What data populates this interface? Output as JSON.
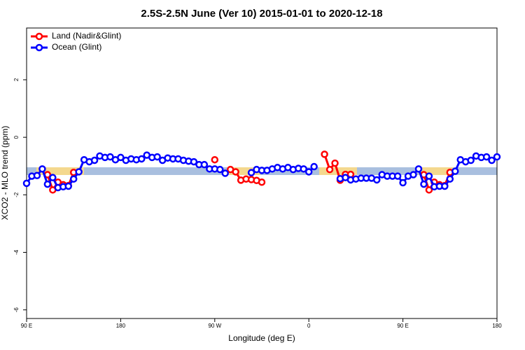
{
  "chart_data": {
    "type": "line",
    "title": "2.5S-2.5N June (Ver 10)   2015-01-01 to 2020-12-18",
    "xlabel": "Longitude (deg E)",
    "ylabel": "XCO2 - MLO trend (ppm)",
    "xlim": [
      90,
      540
    ],
    "ylim": [
      -6.3,
      3.8
    ],
    "xticks": [
      {
        "value": 90,
        "label": "90 E"
      },
      {
        "value": 180,
        "label": "180"
      },
      {
        "value": 270,
        "label": "90 W"
      },
      {
        "value": 360,
        "label": "0"
      },
      {
        "value": 450,
        "label": "90 E"
      },
      {
        "value": 540,
        "label": "180"
      }
    ],
    "yticks": [
      -6,
      -4,
      -2,
      0,
      2
    ],
    "legend": "top-left",
    "series": [
      {
        "name": "Land (Nadir&Glint)",
        "color": "#ff0000",
        "x": [
          110,
          115,
          120,
          125,
          130,
          135,
          null,
          270,
          null,
          285,
          290,
          295,
          300,
          305,
          310,
          315,
          null,
          375,
          380,
          385,
          390,
          395,
          400,
          null,
          470,
          475,
          480,
          485,
          490,
          495
        ],
        "values": [
          -1.3,
          -1.83,
          -1.56,
          -1.65,
          -1.68,
          -1.22,
          null,
          -0.78,
          null,
          -1.12,
          -1.2,
          -1.49,
          -1.45,
          -1.47,
          -1.5,
          -1.56,
          null,
          -0.59,
          -1.12,
          -0.9,
          -1.49,
          -1.29,
          -1.29,
          null,
          -1.3,
          -1.83,
          -1.56,
          -1.65,
          -1.68,
          -1.22
        ]
      },
      {
        "name": "Ocean (Glint)",
        "color": "#0000ff",
        "x": [
          90,
          95,
          100,
          105,
          110,
          115,
          120,
          125,
          130,
          135,
          140,
          145,
          150,
          155,
          160,
          165,
          170,
          175,
          180,
          185,
          190,
          195,
          200,
          205,
          210,
          215,
          220,
          225,
          230,
          235,
          240,
          245,
          250,
          255,
          260,
          265,
          270,
          275,
          280,
          null,
          305,
          310,
          315,
          320,
          325,
          330,
          335,
          340,
          345,
          350,
          355,
          360,
          365,
          null,
          390,
          395,
          400,
          405,
          410,
          415,
          420,
          425,
          430,
          435,
          440,
          445,
          450,
          455,
          460,
          465,
          470,
          475,
          480,
          485,
          490,
          495,
          500,
          505,
          510,
          515,
          520,
          525,
          530,
          535,
          540
        ],
        "values": [
          -1.6,
          -1.35,
          -1.33,
          -1.1,
          -1.63,
          -1.4,
          -1.75,
          -1.72,
          -1.7,
          -1.45,
          -1.2,
          -0.78,
          -0.85,
          -0.8,
          -0.65,
          -0.7,
          -0.68,
          -0.78,
          -0.7,
          -0.8,
          -0.75,
          -0.78,
          -0.75,
          -0.62,
          -0.7,
          -0.68,
          -0.8,
          -0.72,
          -0.75,
          -0.75,
          -0.8,
          -0.83,
          -0.85,
          -0.95,
          -0.95,
          -1.1,
          -1.1,
          -1.12,
          -1.25,
          null,
          -1.23,
          -1.12,
          -1.15,
          -1.15,
          -1.1,
          -1.05,
          -1.1,
          -1.05,
          -1.12,
          -1.08,
          -1.1,
          -1.2,
          -1.02,
          null,
          -1.44,
          -1.4,
          -1.48,
          -1.45,
          -1.42,
          -1.42,
          -1.42,
          -1.48,
          -1.3,
          -1.35,
          -1.35,
          -1.35,
          -1.58,
          -1.35,
          -1.3,
          -1.1,
          -1.63,
          -1.35,
          -1.72,
          -1.7,
          -1.7,
          -1.45,
          -1.18,
          -0.78,
          -0.85,
          -0.8,
          -0.65,
          -0.7,
          -0.68,
          -0.8,
          -0.68
        ]
      }
    ]
  }
}
